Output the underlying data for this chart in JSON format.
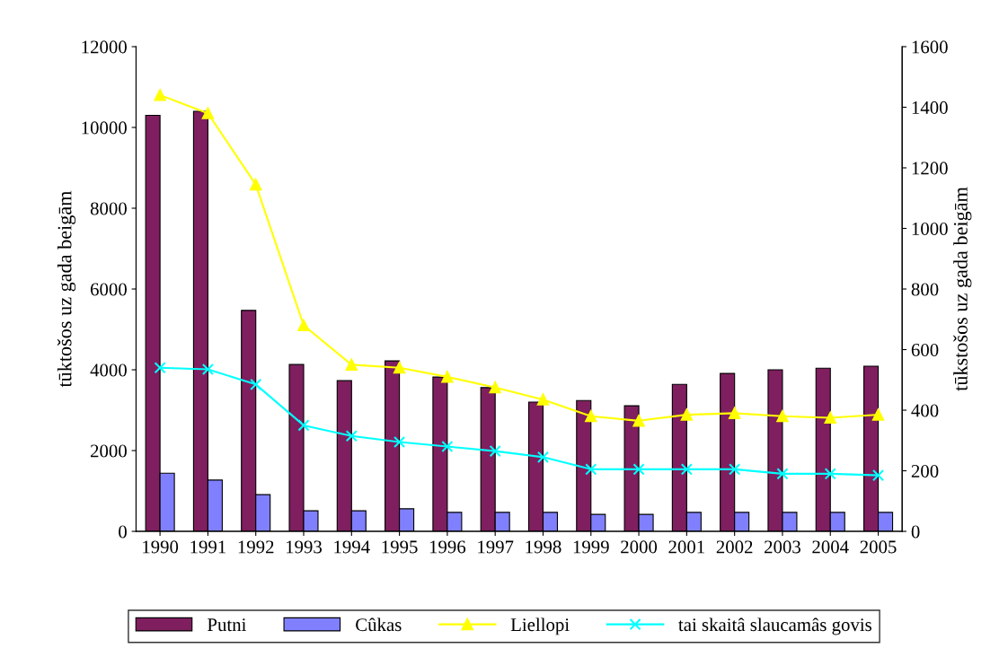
{
  "chart_data": {
    "type": "bar",
    "ylabel": "tūktošos uz gada beigām",
    "y2label": "tūkstošos uz gada beigām",
    "categories": [
      "1990",
      "1991",
      "1992",
      "1993",
      "1994",
      "1995",
      "1996",
      "1997",
      "1998",
      "1999",
      "2000",
      "2001",
      "2002",
      "2003",
      "2004",
      "2005"
    ],
    "series": [
      {
        "name": "Putni",
        "color": "#7f1f5f",
        "values": [
          10300,
          10400,
          5470,
          4130,
          3730,
          4220,
          3820,
          3560,
          3200,
          3240,
          3110,
          3640,
          3910,
          4000,
          4040,
          4090
        ]
      },
      {
        "name": "Cûkas",
        "color": "#8080ff",
        "values": [
          1440,
          1270,
          910,
          510,
          510,
          560,
          470,
          470,
          470,
          420,
          420,
          470,
          470,
          470,
          470,
          470
        ]
      },
      {
        "name": "Liellopi",
        "type": "line",
        "axis": "y2",
        "marker": "triangle",
        "color": "#ffff00",
        "values": [
          1440,
          1380,
          1145,
          680,
          550,
          540,
          510,
          475,
          435,
          380,
          365,
          385,
          390,
          380,
          375,
          385
        ]
      },
      {
        "name": "tai skaitâ slaucamâs govis",
        "type": "line",
        "axis": "y2",
        "marker": "cross",
        "color": "#00ffff",
        "values": [
          540,
          535,
          485,
          350,
          315,
          295,
          280,
          265,
          245,
          205,
          205,
          205,
          205,
          190,
          190,
          185
        ]
      }
    ],
    "ylim": [
      0,
      12000
    ],
    "yticks": [
      0,
      2000,
      4000,
      6000,
      8000,
      10000,
      12000
    ],
    "y2lim": [
      0,
      1600
    ],
    "y2ticks": [
      0,
      200,
      400,
      600,
      800,
      1000,
      1200,
      1400,
      1600
    ],
    "grid": false,
    "legend": "bottom"
  }
}
